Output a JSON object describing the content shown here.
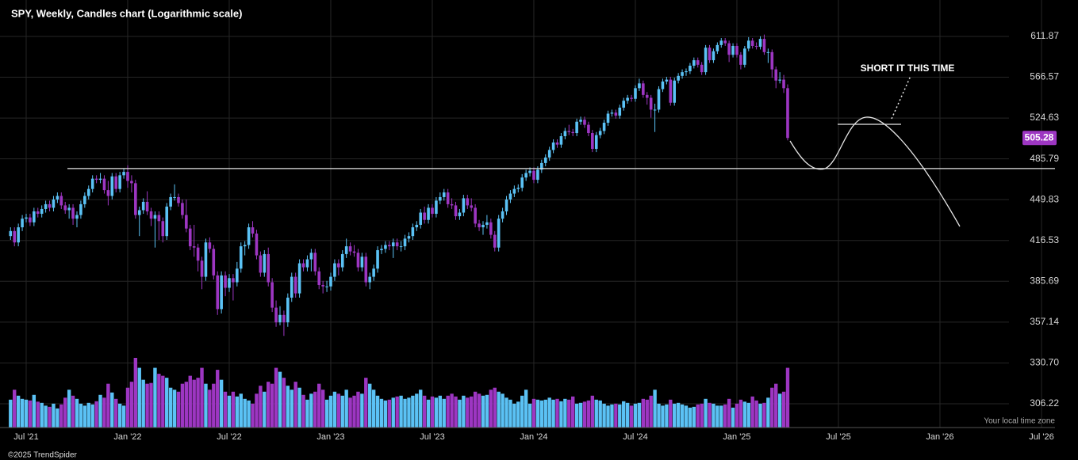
{
  "chart_data": {
    "type": "candlestick",
    "title": "SPY, Weekly, Candles chart (Logarithmic scale)",
    "log_scale": true,
    "grid": true,
    "up_color": "#5bc2f5",
    "down_color": "#9d36c2",
    "ylim": [
      292.8,
      655.3
    ],
    "yticks": [
      {
        "value": 611.87,
        "label": "611.87"
      },
      {
        "value": 566.57,
        "label": "566.57"
      },
      {
        "value": 524.63,
        "label": "524.63"
      },
      {
        "value": 485.79,
        "label": "485.79"
      },
      {
        "value": 449.83,
        "label": "449.83"
      },
      {
        "value": 416.53,
        "label": "416.53"
      },
      {
        "value": 385.69,
        "label": "385.69"
      },
      {
        "value": 357.14,
        "label": "357.14"
      },
      {
        "value": 330.7,
        "label": "330.70"
      },
      {
        "value": 306.22,
        "label": "306.22"
      }
    ],
    "categories": [
      null,
      null,
      null,
      null,
      "Jul '21",
      null,
      null,
      null,
      null,
      null,
      null,
      null,
      null,
      null,
      null,
      null,
      null,
      null,
      null,
      null,
      null,
      null,
      null,
      null,
      null,
      null,
      null,
      null,
      null,
      null,
      "Jan '22",
      null,
      null,
      null,
      null,
      null,
      null,
      null,
      null,
      null,
      null,
      null,
      null,
      null,
      null,
      null,
      null,
      null,
      null,
      null,
      null,
      null,
      null,
      null,
      null,
      null,
      "Jul '22",
      null,
      null,
      null,
      null,
      null,
      null,
      null,
      null,
      null,
      null,
      null,
      null,
      null,
      null,
      null,
      null,
      null,
      null,
      null,
      null,
      null,
      null,
      null,
      null,
      null,
      "Jan '23",
      null,
      null,
      null,
      null,
      null,
      null,
      null,
      null,
      null,
      null,
      null,
      null,
      null,
      null,
      null,
      null,
      null,
      null,
      null,
      null,
      null,
      null,
      null,
      null,
      null,
      "Jul '23",
      null,
      null,
      null,
      null,
      null,
      null,
      null,
      null,
      null,
      null,
      null,
      null,
      null,
      null,
      null,
      null,
      null,
      null,
      null,
      null,
      null,
      null,
      null,
      null,
      null,
      "Jan '24",
      null,
      null,
      null,
      null,
      null,
      null,
      null,
      null,
      null,
      null,
      null,
      null,
      null,
      null,
      null,
      null,
      null,
      null,
      null,
      null,
      null,
      null,
      null,
      null,
      null,
      "Jul '24",
      null,
      null,
      null,
      null,
      null,
      null,
      null,
      null,
      null,
      null,
      null,
      null,
      null,
      null,
      null,
      null,
      null,
      null,
      null,
      null,
      null,
      null,
      null,
      null,
      null,
      "Jan '25",
      null,
      null,
      null,
      null,
      null,
      null,
      null,
      null,
      null,
      null,
      null,
      null,
      null,
      null,
      null,
      null,
      null,
      null,
      null,
      null,
      null,
      null,
      null,
      null,
      null,
      "Jul '25",
      null,
      null,
      null,
      null,
      null,
      null,
      null,
      null,
      null,
      null,
      null,
      null,
      null,
      null,
      null,
      null,
      null,
      null,
      null,
      null,
      null,
      null,
      null,
      null,
      null,
      "Jan '26",
      null,
      null,
      null,
      null,
      null,
      null,
      null,
      null,
      null,
      null,
      null,
      null,
      null,
      null,
      null,
      null,
      null,
      null,
      null,
      null,
      null,
      null,
      null,
      null,
      null,
      "Jul '26"
    ],
    "open": [
      420,
      424,
      415,
      427,
      434,
      435,
      431,
      440,
      438,
      442,
      446,
      443,
      450,
      453,
      445,
      441,
      443,
      434,
      437,
      446,
      453,
      459,
      468,
      467,
      468,
      458,
      453,
      470,
      459,
      471,
      474,
      466,
      464,
      437,
      441,
      448,
      440,
      434,
      437,
      432,
      420,
      444,
      452,
      452,
      447,
      437,
      426,
      412,
      411,
      401,
      389,
      415,
      410,
      390,
      366,
      390,
      381,
      388,
      385,
      395,
      412,
      413,
      427,
      422,
      405,
      392,
      406,
      385,
      367,
      357,
      362,
      357,
      374,
      389,
      377,
      399,
      396,
      402,
      407,
      393,
      383,
      382,
      382,
      389,
      399,
      396,
      406,
      412,
      408,
      407,
      396,
      404,
      385,
      389,
      395,
      409,
      410,
      413,
      412,
      415,
      412,
      412,
      418,
      420,
      427,
      429,
      439,
      433,
      443,
      438,
      449,
      452,
      456,
      446,
      445,
      436,
      439,
      451,
      445,
      443,
      430,
      427,
      429,
      431,
      421,
      411,
      434,
      440,
      450,
      455,
      459,
      460,
      469,
      473,
      475,
      467,
      476,
      482,
      487,
      494,
      501,
      499,
      507,
      512,
      511,
      510,
      521,
      523,
      518,
      510,
      495,
      508,
      512,
      520,
      529,
      530,
      527,
      535,
      542,
      545,
      544,
      555,
      560,
      548,
      545,
      533,
      533,
      554,
      562,
      564,
      540,
      563,
      568,
      572,
      573,
      579,
      585,
      580,
      572,
      599,
      585,
      595,
      602,
      607,
      604,
      591,
      601,
      591,
      580,
      598,
      607,
      601,
      600,
      609,
      594,
      594,
      575,
      563,
      564,
      555,
      null,
      null,
      null,
      null,
      null,
      null,
      null,
      null,
      null,
      null,
      null,
      null,
      null,
      null,
      null,
      null,
      null,
      null,
      null,
      null,
      null,
      null,
      null,
      null,
      null,
      null,
      null,
      null,
      null,
      null,
      null,
      null,
      null,
      null,
      null,
      null,
      null,
      null,
      null,
      null,
      null,
      null,
      null,
      null,
      null,
      null,
      null,
      null,
      null,
      null,
      null,
      null,
      null,
      null,
      null,
      null,
      null,
      null,
      null,
      null,
      null,
      null,
      null,
      null,
      null
    ],
    "high": [
      427,
      427,
      430,
      437,
      438,
      438,
      443,
      443,
      445,
      449,
      449,
      453,
      456,
      456,
      448,
      446,
      446,
      440,
      449,
      456,
      462,
      471,
      471,
      473,
      471,
      466,
      473,
      473,
      474,
      477,
      480,
      471,
      467,
      444,
      451,
      457,
      443,
      440,
      440,
      435,
      447,
      455,
      463,
      455,
      450,
      450,
      429,
      429,
      414,
      404,
      418,
      419,
      413,
      393,
      393,
      393,
      391,
      391,
      400,
      415,
      416,
      430,
      432,
      425,
      408,
      409,
      411,
      388,
      372,
      368,
      365,
      377,
      392,
      392,
      402,
      402,
      405,
      410,
      410,
      396,
      386,
      386,
      392,
      402,
      402,
      409,
      418,
      415,
      413,
      410,
      407,
      407,
      392,
      398,
      412,
      413,
      416,
      416,
      418,
      418,
      416,
      421,
      423,
      430,
      432,
      442,
      444,
      446,
      446,
      452,
      456,
      459,
      459,
      451,
      448,
      442,
      454,
      454,
      451,
      446,
      433,
      432,
      437,
      434,
      424,
      437,
      443,
      453,
      458,
      462,
      463,
      472,
      476,
      478,
      478,
      479,
      485,
      490,
      497,
      504,
      504,
      510,
      515,
      518,
      514,
      524,
      526,
      526,
      521,
      513,
      511,
      515,
      523,
      532,
      533,
      533,
      538,
      545,
      548,
      548,
      558,
      565,
      563,
      551,
      548,
      539,
      557,
      565,
      567,
      567,
      566,
      571,
      575,
      576,
      582,
      588,
      588,
      583,
      602,
      602,
      598,
      605,
      610,
      610,
      607,
      604,
      604,
      594,
      601,
      611,
      610,
      605,
      612,
      614,
      598,
      597,
      578,
      572,
      569,
      559,
      null,
      null,
      null,
      null,
      null,
      null,
      null,
      null,
      null,
      null,
      null,
      null,
      null,
      null,
      null,
      null,
      null,
      null,
      null,
      null,
      null,
      null,
      null,
      null,
      null,
      null,
      null,
      null,
      null,
      null,
      null,
      null,
      null,
      null,
      null,
      null,
      null,
      null,
      null,
      null,
      null,
      null,
      null,
      null,
      null,
      null,
      null,
      null,
      null,
      null,
      null,
      null,
      null,
      null,
      null,
      null,
      null,
      null,
      null,
      null,
      null,
      null,
      null,
      null,
      null
    ],
    "low": [
      417,
      412,
      412,
      424,
      431,
      428,
      428,
      435,
      435,
      439,
      440,
      440,
      447,
      442,
      438,
      434,
      429,
      427,
      434,
      443,
      450,
      456,
      464,
      464,
      455,
      445,
      450,
      456,
      456,
      468,
      460,
      456,
      434,
      420,
      438,
      437,
      428,
      411,
      417,
      415,
      417,
      441,
      449,
      444,
      434,
      423,
      409,
      404,
      393,
      380,
      386,
      407,
      387,
      362,
      363,
      375,
      378,
      372,
      382,
      392,
      405,
      410,
      419,
      402,
      389,
      389,
      382,
      364,
      354,
      355,
      348,
      354,
      371,
      374,
      374,
      393,
      393,
      393,
      390,
      380,
      377,
      378,
      379,
      386,
      390,
      393,
      403,
      405,
      404,
      393,
      393,
      382,
      380,
      386,
      392,
      406,
      407,
      409,
      403,
      409,
      408,
      409,
      415,
      417,
      424,
      426,
      430,
      430,
      435,
      435,
      446,
      449,
      443,
      442,
      433,
      433,
      436,
      442,
      440,
      427,
      424,
      421,
      426,
      418,
      408,
      408,
      431,
      437,
      447,
      452,
      456,
      457,
      466,
      470,
      464,
      464,
      473,
      479,
      484,
      491,
      496,
      496,
      504,
      508,
      507,
      507,
      518,
      515,
      507,
      492,
      492,
      505,
      509,
      517,
      526,
      524,
      524,
      532,
      539,
      541,
      541,
      552,
      545,
      538,
      525,
      511,
      530,
      551,
      559,
      537,
      537,
      560,
      565,
      568,
      570,
      576,
      577,
      569,
      569,
      582,
      582,
      592,
      599,
      601,
      583,
      588,
      588,
      575,
      577,
      595,
      598,
      597,
      597,
      591,
      582,
      566,
      555,
      560,
      550,
      503,
      null,
      null,
      null,
      null,
      null,
      null,
      null,
      null,
      null,
      null,
      null,
      null,
      null,
      null,
      null,
      null,
      null,
      null,
      null,
      null,
      null,
      null,
      null,
      null,
      null,
      null,
      null,
      null,
      null,
      null,
      null,
      null,
      null,
      null,
      null,
      null,
      null,
      null,
      null,
      null,
      null,
      null,
      null,
      null,
      null,
      null,
      null,
      null,
      null,
      null,
      null,
      null,
      null,
      null,
      null,
      null,
      null,
      null,
      null,
      null,
      null,
      null,
      null,
      null,
      null
    ],
    "close": [
      424,
      415,
      427,
      434,
      435,
      431,
      440,
      438,
      442,
      446,
      443,
      450,
      453,
      445,
      441,
      443,
      434,
      437,
      446,
      453,
      459,
      468,
      467,
      468,
      458,
      453,
      470,
      459,
      471,
      474,
      466,
      464,
      437,
      441,
      448,
      440,
      434,
      437,
      432,
      420,
      444,
      452,
      452,
      447,
      437,
      426,
      412,
      411,
      401,
      389,
      415,
      410,
      390,
      366,
      390,
      381,
      388,
      385,
      395,
      412,
      413,
      427,
      422,
      405,
      392,
      406,
      385,
      367,
      357,
      362,
      357,
      374,
      389,
      377,
      399,
      396,
      402,
      407,
      393,
      383,
      382,
      382,
      389,
      399,
      396,
      406,
      412,
      408,
      407,
      396,
      404,
      385,
      389,
      395,
      409,
      410,
      413,
      412,
      415,
      412,
      412,
      418,
      420,
      427,
      429,
      439,
      433,
      443,
      438,
      449,
      452,
      456,
      446,
      445,
      436,
      439,
      451,
      445,
      443,
      430,
      427,
      429,
      431,
      421,
      411,
      434,
      440,
      450,
      455,
      459,
      460,
      469,
      473,
      475,
      467,
      476,
      482,
      487,
      494,
      501,
      499,
      507,
      512,
      511,
      510,
      521,
      523,
      518,
      510,
      495,
      508,
      512,
      520,
      529,
      530,
      527,
      535,
      542,
      545,
      544,
      555,
      560,
      548,
      545,
      533,
      533,
      554,
      562,
      564,
      540,
      563,
      568,
      572,
      573,
      579,
      585,
      580,
      572,
      599,
      585,
      595,
      602,
      607,
      604,
      591,
      601,
      591,
      580,
      598,
      607,
      601,
      600,
      609,
      594,
      594,
      575,
      563,
      564,
      555,
      505.28,
      null,
      null,
      null,
      null,
      null,
      null,
      null,
      null,
      null,
      null,
      null,
      null,
      null,
      null,
      null,
      null,
      null,
      null,
      null,
      null,
      null,
      null,
      null,
      null,
      null,
      null,
      null,
      null,
      null,
      null,
      null,
      null,
      null,
      null,
      null,
      null,
      null,
      null,
      null,
      null,
      null,
      null,
      null,
      null,
      null,
      null,
      null,
      null,
      null,
      null,
      null,
      null,
      null,
      null,
      null,
      null,
      null,
      null,
      null,
      null,
      null,
      null,
      null,
      null,
      null
    ],
    "volume": [
      70,
      95,
      80,
      72,
      70,
      68,
      82,
      65,
      62,
      55,
      52,
      60,
      48,
      58,
      75,
      95,
      80,
      72,
      60,
      55,
      62,
      58,
      66,
      82,
      75,
      110,
      88,
      72,
      60,
      55,
      100,
      115,
      175,
      150,
      120,
      110,
      112,
      150,
      135,
      130,
      125,
      100,
      95,
      90,
      110,
      115,
      130,
      120,
      125,
      150,
      110,
      95,
      110,
      145,
      120,
      90,
      80,
      90,
      78,
      85,
      72,
      68,
      60,
      85,
      105,
      90,
      115,
      110,
      150,
      140,
      125,
      105,
      95,
      115,
      100,
      82,
      70,
      85,
      90,
      110,
      95,
      70,
      80,
      90,
      85,
      80,
      95,
      75,
      80,
      90,
      85,
      125,
      110,
      95,
      80,
      72,
      68,
      70,
      75,
      78,
      80,
      72,
      75,
      80,
      85,
      95,
      80,
      70,
      78,
      75,
      80,
      72,
      80,
      85,
      78,
      70,
      80,
      75,
      78,
      90,
      85,
      80,
      82,
      95,
      100,
      90,
      85,
      75,
      70,
      60,
      65,
      80,
      95,
      60,
      72,
      70,
      68,
      70,
      75,
      70,
      72,
      66,
      72,
      70,
      78,
      60,
      62,
      65,
      68,
      80,
      70,
      68,
      60,
      55,
      58,
      60,
      58,
      66,
      62,
      55,
      60,
      62,
      72,
      70,
      80,
      95,
      60,
      55,
      58,
      70,
      60,
      62,
      58,
      55,
      50,
      52,
      58,
      60,
      72,
      62,
      60,
      55,
      55,
      58,
      72,
      50,
      60,
      70,
      65,
      62,
      78,
      68,
      60,
      62,
      75,
      100,
      110,
      85,
      90,
      150,
      null,
      null,
      null,
      null,
      null,
      null,
      null,
      null,
      null,
      null,
      null,
      null,
      null,
      null,
      null,
      null,
      null,
      null,
      null,
      null,
      null,
      null,
      null,
      null,
      null,
      null,
      null,
      null,
      null,
      null,
      null,
      null,
      null,
      null,
      null,
      null,
      null,
      null,
      null,
      null,
      null,
      null,
      null,
      null,
      null,
      null,
      null,
      null,
      null,
      null,
      null,
      null,
      null,
      null,
      null,
      null,
      null,
      null,
      null,
      null,
      null,
      null,
      null,
      null,
      null
    ],
    "hline": 477,
    "last_price": {
      "value": 505.28,
      "label": "505.28"
    },
    "annotation": "SHORT IT THIS TIME",
    "timezone_note": "Your local time zone",
    "copyright": "©2025 TrendSpider"
  }
}
